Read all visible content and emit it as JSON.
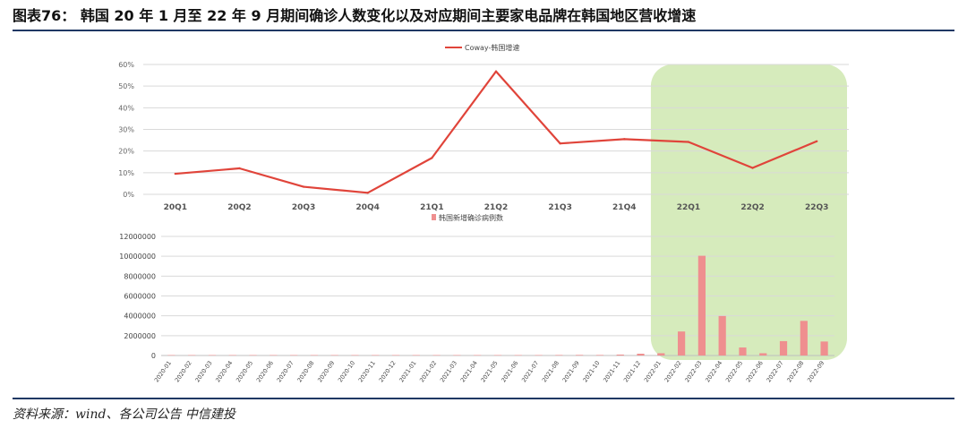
{
  "figure": {
    "title": "图表76： 韩国 20 年 1 月至 22 年 9 月期间确诊人数变化以及对应期间主要家电品牌在韩国地区营收增速",
    "source": "资料来源：wind、各公司公告    中信建投"
  },
  "colors": {
    "line": "#e0443a",
    "bar": "#ef8f8f",
    "highlight": "#cfe8b0",
    "rule": "#1f3864",
    "grid": "#d9d9d9"
  },
  "chart_data": [
    {
      "type": "line",
      "title": "",
      "legend": "Coway-韩国增速",
      "legend_position": "top-center",
      "categories": [
        "20Q1",
        "20Q2",
        "20Q3",
        "20Q4",
        "21Q1",
        "21Q2",
        "21Q3",
        "21Q4",
        "22Q1",
        "22Q2",
        "22Q3"
      ],
      "series": [
        {
          "name": "Coway-韩国增速",
          "values": [
            9.5,
            12,
            3.5,
            0.7,
            16.8,
            56.8,
            23.5,
            25.5,
            24.2,
            12.2,
            24.5
          ]
        }
      ],
      "ylim": [
        0,
        60
      ],
      "yticks": [
        "0%",
        "10%",
        "20%",
        "30%",
        "40%",
        "50%",
        "60%"
      ],
      "grid": true,
      "highlight_from": "22Q1",
      "highlight_to": "22Q3"
    },
    {
      "type": "bar",
      "title": "",
      "legend": "韩国新增确诊病例数",
      "legend_position": "top-center",
      "categories": [
        "2020-01",
        "2020-02",
        "2020-03",
        "2020-04",
        "2020-05",
        "2020-06",
        "2020-07",
        "2020-08",
        "2020-09",
        "2020-10",
        "2020-11",
        "2020-12",
        "2021-01",
        "2021-02",
        "2021-03",
        "2021-04",
        "2021-05",
        "2021-06",
        "2021-07",
        "2021-08",
        "2021-09",
        "2021-10",
        "2021-11",
        "2021-12",
        "2022-01",
        "2022-02",
        "2022-03",
        "2022-04",
        "2022-05",
        "2022-06",
        "2022-07",
        "2022-08",
        "2022-09"
      ],
      "series": [
        {
          "name": "韩国新增确诊病例数",
          "values": [
            11,
            3150,
            6636,
            979,
            703,
            1331,
            1506,
            5642,
            3707,
            2700,
            7408,
            26523,
            17563,
            11491,
            13441,
            18877,
            18245,
            16677,
            41463,
            52719,
            59889,
            54893,
            94719,
            180906,
            230000,
            2420000,
            10050000,
            3980000,
            810000,
            230000,
            1450000,
            3490000,
            1410000
          ]
        }
      ],
      "ylim": [
        0,
        12000000
      ],
      "yticks": [
        "0",
        "2000000",
        "4000000",
        "6000000",
        "8000000",
        "10000000",
        "12000000"
      ],
      "grid": true,
      "highlight_from": "2022-01",
      "highlight_to": "2022-09"
    }
  ]
}
